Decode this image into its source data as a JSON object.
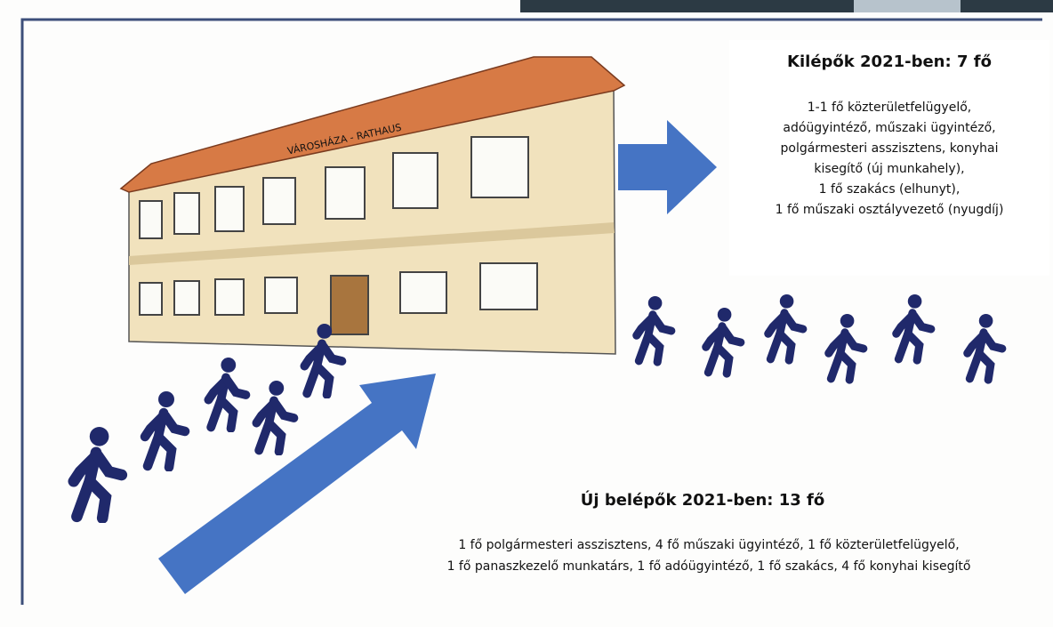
{
  "building": {
    "sign": "VÁROSHÁZA - RATHAUS"
  },
  "exits": {
    "title": "Kilépők 2021-ben: 7 fő",
    "lines": [
      "1-1 fő közterületfelügyelő,",
      "adóügyintéző, műszaki ügyintéző,",
      "polgármesteri asszisztens, konyhai",
      "kisegítő (új munkahely),",
      "1 fő szakács (elhunyt),",
      "1 fő műszaki osztályvezető (nyugdíj)"
    ]
  },
  "entries": {
    "title": "Új belépők 2021-ben: 13 fő",
    "lines": [
      "1 fő polgármesteri asszisztens, 4 fő műszaki ügyintéző, 1 fő közterületfelügyelő,",
      "1 fő panaszkezelő munkatárs, 1 fő adóügyintéző, 1 fő szakács, 4 fő konyhai kisegítő"
    ]
  }
}
